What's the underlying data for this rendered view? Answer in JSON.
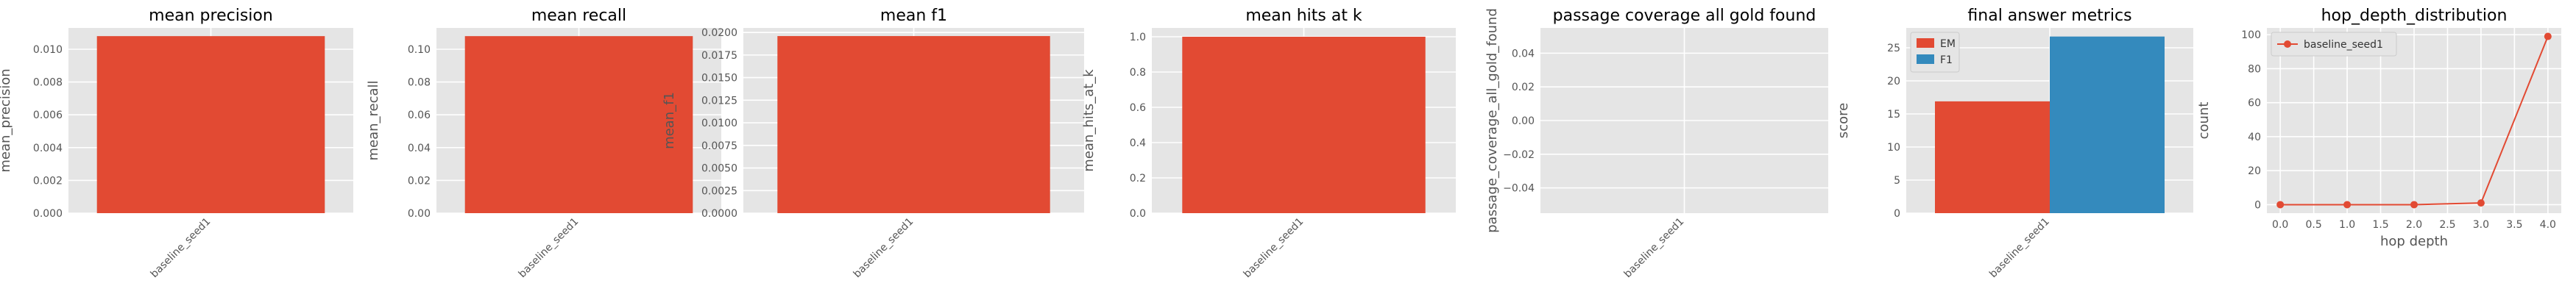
{
  "chart_data": [
    {
      "type": "bar",
      "title": "mean precision",
      "xlabel": "",
      "ylabel": "mean_precision",
      "categories": [
        "baseline_seed1"
      ],
      "values": [
        0.0108
      ],
      "ylim": [
        0,
        0.0113
      ],
      "yticks": [
        0,
        0.002,
        0.004,
        0.006,
        0.008,
        0.01
      ],
      "ytick_labels": [
        "0.000",
        "0.002",
        "0.004",
        "0.006",
        "0.008",
        "0.010"
      ],
      "color": "#E24A33",
      "grid": true
    },
    {
      "type": "bar",
      "title": "mean recall",
      "xlabel": "",
      "ylabel": "mean_recall",
      "categories": [
        "baseline_seed1"
      ],
      "values": [
        0.108
      ],
      "ylim": [
        0,
        0.113
      ],
      "yticks": [
        0,
        0.02,
        0.04,
        0.06,
        0.08,
        0.1
      ],
      "ytick_labels": [
        "0.00",
        "0.02",
        "0.04",
        "0.06",
        "0.08",
        "0.10"
      ],
      "color": "#E24A33",
      "grid": true
    },
    {
      "type": "bar",
      "title": "mean f1",
      "xlabel": "",
      "ylabel": "mean_f1",
      "categories": [
        "baseline_seed1"
      ],
      "values": [
        0.0196
      ],
      "ylim": [
        0,
        0.0205
      ],
      "yticks": [
        0,
        0.0025,
        0.005,
        0.0075,
        0.01,
        0.0125,
        0.015,
        0.0175,
        0.02
      ],
      "ytick_labels": [
        "0.0000",
        "0.0025",
        "0.0050",
        "0.0075",
        "0.0100",
        "0.0125",
        "0.0150",
        "0.0175",
        "0.0200"
      ],
      "color": "#E24A33",
      "grid": true
    },
    {
      "type": "bar",
      "title": "mean hits at k",
      "xlabel": "",
      "ylabel": "mean_hits_at_k",
      "categories": [
        "baseline_seed1"
      ],
      "values": [
        1.0
      ],
      "ylim": [
        0,
        1.05
      ],
      "yticks": [
        0,
        0.2,
        0.4,
        0.6,
        0.8,
        1.0
      ],
      "ytick_labels": [
        "0.0",
        "0.2",
        "0.4",
        "0.6",
        "0.8",
        "1.0"
      ],
      "color": "#E24A33",
      "grid": true
    },
    {
      "type": "bar",
      "title": "passage coverage all gold found",
      "xlabel": "",
      "ylabel": "passage_coverage_all_gold_found",
      "categories": [
        "baseline_seed1"
      ],
      "values": [
        0
      ],
      "ylim": [
        -0.055,
        0.055
      ],
      "yticks": [
        -0.04,
        -0.02,
        0,
        0.02,
        0.04
      ],
      "ytick_labels": [
        "−0.04",
        "−0.02",
        "0.00",
        "0.02",
        "0.04"
      ],
      "color": "#E24A33",
      "grid": true
    },
    {
      "type": "bar",
      "title": "final answer metrics",
      "xlabel": "",
      "ylabel": "score",
      "categories": [
        "baseline_seed1"
      ],
      "series": [
        {
          "name": "EM",
          "values": [
            16.9
          ],
          "color": "#E24A33"
        },
        {
          "name": "F1",
          "values": [
            26.7
          ],
          "color": "#348ABD"
        }
      ],
      "ylim": [
        0,
        28
      ],
      "yticks": [
        0,
        5,
        10,
        15,
        20,
        25
      ],
      "ytick_labels": [
        "0",
        "5",
        "10",
        "15",
        "20",
        "25"
      ],
      "legend": "top-left",
      "grid": true
    },
    {
      "type": "line",
      "title": "hop_depth_distribution",
      "xlabel": "hop depth",
      "ylabel": "count",
      "series": [
        {
          "name": "baseline_seed1",
          "x": [
            0,
            1,
            2,
            3,
            4
          ],
          "y": [
            0,
            0,
            0,
            1,
            99
          ],
          "color": "#E24A33"
        }
      ],
      "xlim": [
        -0.2,
        4.2
      ],
      "ylim": [
        -5,
        104
      ],
      "xticks": [
        0,
        0.5,
        1.0,
        1.5,
        2.0,
        2.5,
        3.0,
        3.5,
        4.0
      ],
      "xtick_labels": [
        "0.0",
        "0.5",
        "1.0",
        "1.5",
        "2.0",
        "2.5",
        "3.0",
        "3.5",
        "4.0"
      ],
      "yticks": [
        0,
        20,
        40,
        60,
        80,
        100
      ],
      "ytick_labels": [
        "0",
        "20",
        "40",
        "60",
        "80",
        "100"
      ],
      "legend": "top-left",
      "grid": true
    }
  ]
}
